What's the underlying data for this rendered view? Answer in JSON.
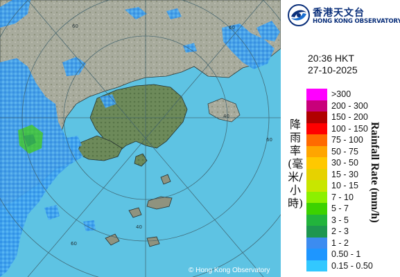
{
  "brand": {
    "name_cn": "香港天文台",
    "name_en": "HONG KONG OBSERVATORY"
  },
  "timestamp": {
    "time": "20:36 HKT",
    "date": "27-10-2025"
  },
  "legend": {
    "title_cn": "降雨率(毫米/小時)",
    "title_en": "Rainfall Rate (mm/h)",
    "items": [
      {
        "label": ">300",
        "color": "#ff00ff"
      },
      {
        "label": "200 - 300",
        "color": "#c8007a"
      },
      {
        "label": "150 - 200",
        "color": "#b00000"
      },
      {
        "label": "100 - 150",
        "color": "#ff0000"
      },
      {
        "label": "75 - 100",
        "color": "#ff6a00"
      },
      {
        "label": "50 - 75",
        "color": "#ffa500"
      },
      {
        "label": "30 - 50",
        "color": "#ffc800"
      },
      {
        "label": "15 - 30",
        "color": "#e6d200"
      },
      {
        "label": "10 - 15",
        "color": "#c8e600"
      },
      {
        "label": "7 - 10",
        "color": "#8cf000"
      },
      {
        "label": "5 - 7",
        "color": "#3cd200"
      },
      {
        "label": "3 - 5",
        "color": "#22b43c"
      },
      {
        "label": "2 - 3",
        "color": "#1e9650"
      },
      {
        "label": "1 - 2",
        "color": "#3c8cf0"
      },
      {
        "label": "0.50 - 1",
        "color": "#1e96ff"
      },
      {
        "label": "0.15 - 0.50",
        "color": "#32c8ff"
      }
    ]
  },
  "map": {
    "range_ring_labels": [
      "60",
      "60",
      "40",
      "60",
      "40",
      "60"
    ],
    "sea_color": "#5ec3e3",
    "copyright": "© Hong Kong Observatory"
  }
}
